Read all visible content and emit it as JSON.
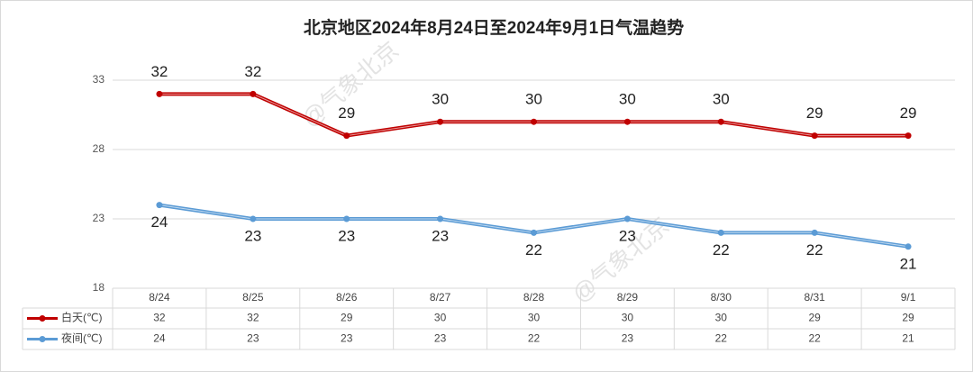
{
  "chart_data": {
    "type": "line",
    "title": "北京地区2024年8月24日至2024年9月1日气温趋势",
    "watermark": "@气象北京",
    "categories": [
      "8/24",
      "8/25",
      "8/26",
      "8/27",
      "8/28",
      "8/29",
      "8/30",
      "8/31",
      "9/1"
    ],
    "series": [
      {
        "name": "白天(℃)",
        "color": "#c00000",
        "values": [
          32,
          32,
          29,
          30,
          30,
          30,
          30,
          29,
          29
        ]
      },
      {
        "name": "夜间(℃)",
        "color": "#5b9bd5",
        "values": [
          24,
          23,
          23,
          23,
          22,
          23,
          22,
          22,
          21
        ]
      }
    ],
    "ylim": [
      18,
      33
    ],
    "yticks": [
      18,
      23,
      28,
      33
    ],
    "grid": true,
    "data_table": true
  }
}
